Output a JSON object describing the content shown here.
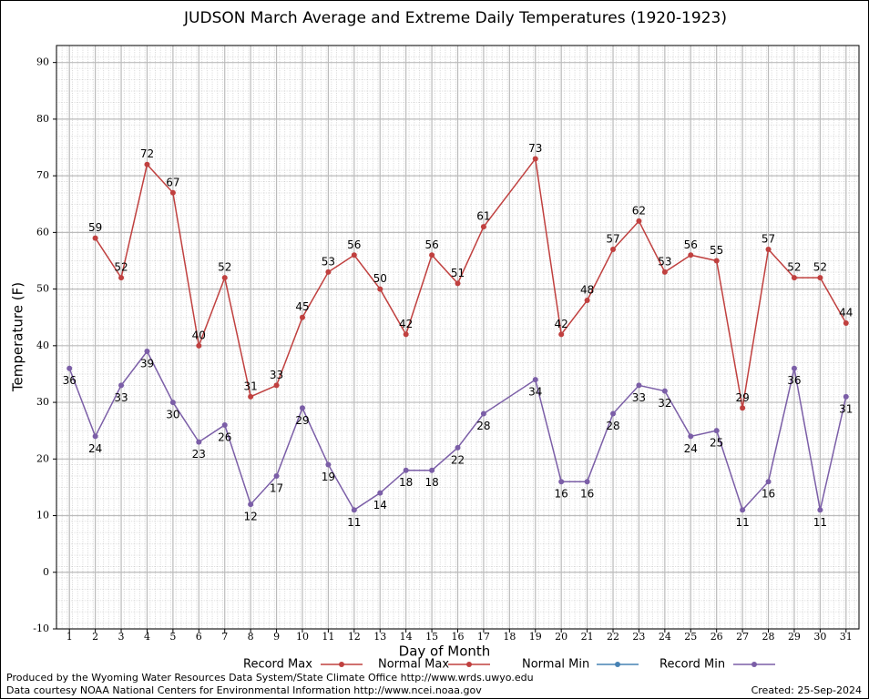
{
  "chart_data": {
    "type": "line",
    "title": "JUDSON March Average and Extreme Daily Temperatures (1920-1923)",
    "x_label": "Day of Month",
    "y_label": "Temperature (F)",
    "x": [
      1,
      2,
      3,
      4,
      5,
      6,
      7,
      8,
      9,
      10,
      11,
      12,
      13,
      14,
      15,
      16,
      17,
      19,
      20,
      21,
      22,
      23,
      24,
      25,
      26,
      27,
      28,
      29,
      30,
      31
    ],
    "series": [
      {
        "name": "Record Max",
        "color": "#c0403f",
        "values": [
          null,
          59,
          52,
          72,
          67,
          40,
          52,
          31,
          33,
          45,
          53,
          56,
          50,
          42,
          56,
          51,
          61,
          73,
          42,
          48,
          57,
          62,
          53,
          56,
          55,
          29,
          57,
          52,
          52,
          44
        ],
        "label_side": "above"
      },
      {
        "name": "Normal Max",
        "color": "#c0403f",
        "values": [
          null,
          null,
          null,
          null,
          null,
          null,
          null,
          null,
          null,
          null,
          null,
          null,
          null,
          null,
          null,
          null,
          null,
          null,
          null,
          null,
          null,
          null,
          null,
          null,
          null,
          null,
          null,
          null,
          null,
          null
        ]
      },
      {
        "name": "Normal Min",
        "color": "#4682b4",
        "values": [
          null,
          null,
          null,
          null,
          null,
          null,
          null,
          null,
          null,
          null,
          null,
          null,
          null,
          null,
          null,
          null,
          null,
          null,
          null,
          null,
          null,
          null,
          null,
          null,
          null,
          null,
          null,
          null,
          null,
          null
        ]
      },
      {
        "name": "Record Min",
        "color": "#7b5ea7",
        "values": [
          36,
          24,
          33,
          39,
          30,
          23,
          26,
          12,
          17,
          29,
          19,
          11,
          14,
          18,
          18,
          22,
          28,
          34,
          16,
          16,
          28,
          33,
          32,
          24,
          25,
          11,
          16,
          36,
          11,
          31
        ],
        "label_side": "below"
      }
    ],
    "xlim": [
      0.5,
      31.5
    ],
    "xticks": [
      1,
      2,
      3,
      4,
      5,
      6,
      7,
      8,
      9,
      10,
      11,
      12,
      13,
      14,
      15,
      16,
      17,
      18,
      19,
      20,
      21,
      22,
      23,
      24,
      25,
      26,
      27,
      28,
      29,
      30,
      31
    ],
    "ylim": [
      -10,
      93
    ],
    "yticks": [
      -10,
      0,
      10,
      20,
      30,
      40,
      50,
      60,
      70,
      80,
      90
    ],
    "grid": true,
    "footer_left": [
      "Produced by the Wyoming Water Resources Data System/State Climate Office http://www.wrds.uwyo.edu",
      "Data courtesy NOAA National Centers for Environmental Information http://www.ncei.noaa.gov"
    ],
    "footer_right": "Created:  25-Sep-2024"
  }
}
